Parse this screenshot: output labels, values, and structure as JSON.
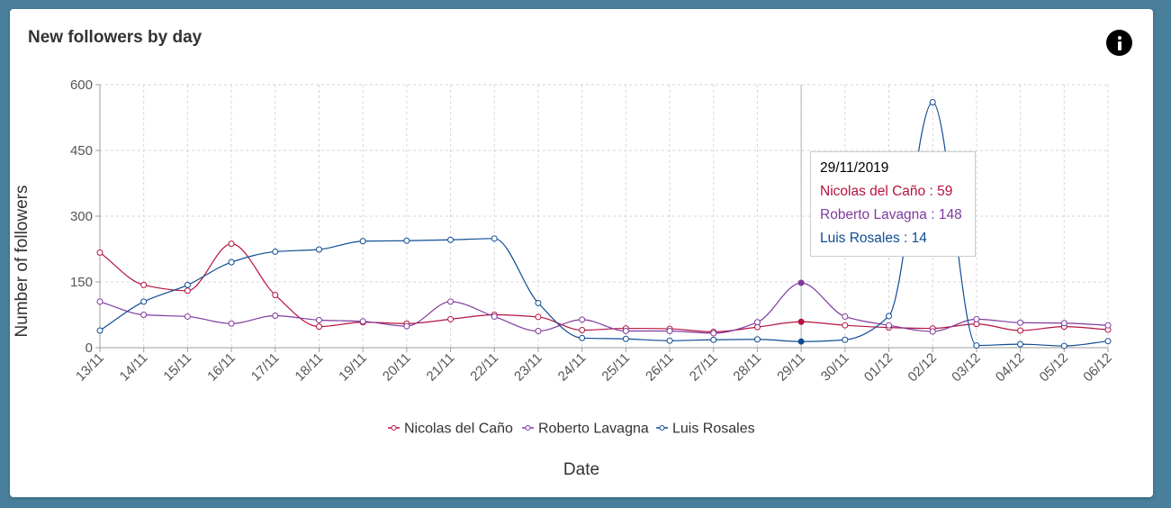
{
  "card": {
    "title": "New followers by day"
  },
  "info": {
    "icon": "info-icon"
  },
  "colors": {
    "nicolas": "#b5133f",
    "roberto": "#7f3a9e",
    "luis": "#0f4c94",
    "grid": "#cfcfcf",
    "axis": "#9e9e9e"
  },
  "tooltip": {
    "date": "29/11/2019",
    "lines": [
      "Nicolas del Caño : 59",
      "Roberto Lavagna : 148",
      "Luis Rosales : 14"
    ]
  },
  "chart_data": {
    "type": "line",
    "title": "New followers by day",
    "xlabel": "Date",
    "ylabel": "Number of followers",
    "ylim": [
      0,
      600
    ],
    "yticks": [
      0,
      150,
      300,
      450,
      600
    ],
    "grid": true,
    "legend_position": "bottom-center",
    "categories": [
      "13/11",
      "14/11",
      "15/11",
      "16/11",
      "17/11",
      "18/11",
      "19/11",
      "20/11",
      "21/11",
      "22/11",
      "23/11",
      "24/11",
      "25/11",
      "26/11",
      "27/11",
      "28/11",
      "29/11",
      "30/11",
      "01/12",
      "02/12",
      "03/12",
      "04/12",
      "05/12",
      "06/12"
    ],
    "highlight_index": 16,
    "series": [
      {
        "name": "Nicolas del Caño",
        "color": "#b5133f",
        "values": [
          217,
          143,
          130,
          237,
          120,
          48,
          58,
          55,
          65,
          75,
          70,
          40,
          44,
          43,
          36,
          47,
          59,
          51,
          46,
          44,
          54,
          39,
          48,
          41
        ]
      },
      {
        "name": "Roberto Lavagna",
        "color": "#7f3a9e",
        "values": [
          105,
          75,
          71,
          55,
          73,
          63,
          60,
          49,
          105,
          71,
          38,
          64,
          38,
          38,
          33,
          58,
          148,
          71,
          51,
          37,
          65,
          57,
          56,
          51
        ]
      },
      {
        "name": "Luis Rosales",
        "color": "#0f4c94",
        "values": [
          39,
          105,
          143,
          195,
          219,
          224,
          243,
          244,
          246,
          249,
          102,
          22,
          20,
          16,
          18,
          19,
          14,
          18,
          72,
          560,
          5,
          8,
          4,
          15
        ]
      }
    ]
  }
}
